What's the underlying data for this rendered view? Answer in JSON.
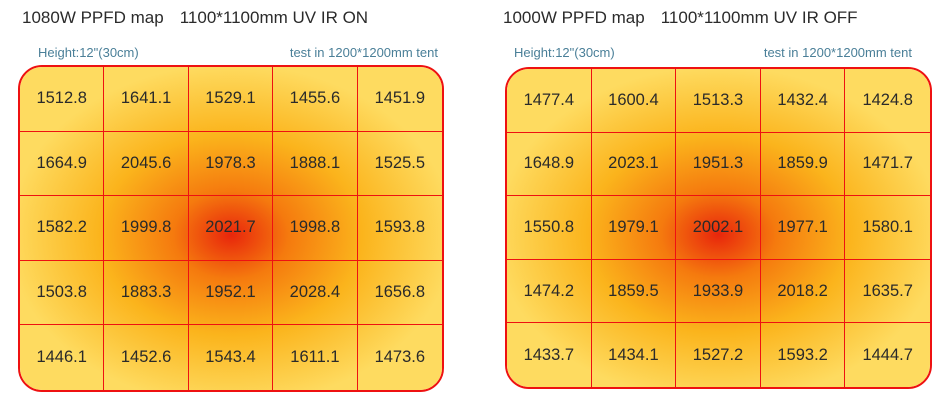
{
  "chart_data": [
    {
      "type": "heatmap",
      "title": "1080W PPFD map",
      "subtitle": "1100*1100mm UV IR ON",
      "height_note": "Height:12\"(30cm)",
      "tent_note": "test in 1200*1200mm tent",
      "rows": [
        [
          "1512.8",
          "1641.1",
          "1529.1",
          "1455.6",
          "1451.9"
        ],
        [
          "1664.9",
          "2045.6",
          "1978.3",
          "1888.1",
          "1525.5"
        ],
        [
          "1582.2",
          "1999.8",
          "2021.7",
          "1998.8",
          "1593.8"
        ],
        [
          "1503.8",
          "1883.3",
          "1952.1",
          "2028.4",
          "1656.8"
        ],
        [
          "1446.1",
          "1452.6",
          "1543.4",
          "1611.1",
          "1473.6"
        ]
      ]
    },
    {
      "type": "heatmap",
      "title": "1000W PPFD map",
      "subtitle": "1100*1100mm UV IR OFF",
      "height_note": "Height:12\"(30cm)",
      "tent_note": "test in 1200*1200mm tent",
      "rows": [
        [
          "1477.4",
          "1600.4",
          "1513.3",
          "1432.4",
          "1424.8"
        ],
        [
          "1648.9",
          "2023.1",
          "1951.3",
          "1859.9",
          "1471.7"
        ],
        [
          "1550.8",
          "1979.1",
          "2002.1",
          "1977.1",
          "1580.1"
        ],
        [
          "1474.2",
          "1859.5",
          "1933.9",
          "2018.2",
          "1635.7"
        ],
        [
          "1433.7",
          "1434.1",
          "1527.2",
          "1593.2",
          "1444.7"
        ]
      ]
    }
  ],
  "colors": {
    "hot": "#e8260c",
    "mid": "#f57a0e",
    "warm": "#fbb41c",
    "cool": "#fedb60",
    "grid_line": "#ee1111",
    "note_text": "#4a7f98"
  }
}
